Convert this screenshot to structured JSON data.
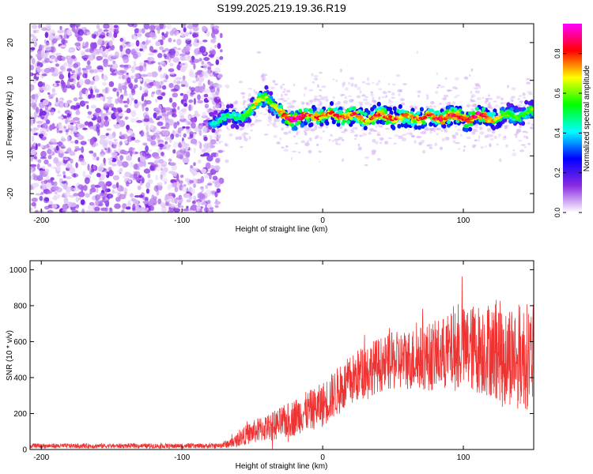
{
  "title": "S199.2025.219.19.36.R19",
  "chart_data": [
    {
      "type": "heatmap",
      "xlabel": "Height of straight line (km)",
      "ylabel": "Frequency (Hz)",
      "xlim": [
        -208,
        150
      ],
      "ylim": [
        -25,
        25
      ],
      "xticks": [
        -200,
        -100,
        0,
        100
      ],
      "xtick_labels": [
        "-200",
        "-100",
        "0",
        "100"
      ],
      "yticks": [
        -20,
        -10,
        0,
        10,
        20
      ],
      "ytick_labels": [
        "-20",
        "-10",
        "0",
        "10",
        "20"
      ],
      "colorbar": {
        "label": "Normalized spectral amplitude",
        "range": [
          0,
          0.95
        ],
        "ticks": [
          0.0,
          0.2,
          0.4,
          0.6,
          0.8
        ],
        "tick_labels": [
          "0.0",
          "0.2",
          "0.4",
          "0.6",
          "0.8"
        ],
        "colormap": [
          "#ffffff",
          "#8a2be2",
          "#0000ff",
          "#00ffff",
          "#00ff00",
          "#ffff00",
          "#ff0000",
          "#ff00ff"
        ]
      },
      "noise_region": {
        "x_range": [
          -208,
          -72
        ],
        "freq_range": [
          -25,
          25
        ]
      },
      "signal_ridge": {
        "x": [
          -80,
          -70,
          -60,
          -50,
          -45,
          -40,
          -35,
          -30,
          -25,
          -20,
          -15,
          -10,
          -5,
          0,
          10,
          20,
          30,
          40,
          50,
          60,
          70,
          80,
          90,
          100,
          110,
          120,
          130,
          140,
          150
        ],
        "frequency": [
          -1,
          0,
          0.5,
          2,
          5,
          6,
          3,
          1,
          0.5,
          0,
          0,
          0.5,
          1,
          0.5,
          1,
          0.5,
          0,
          0.5,
          0.5,
          0,
          0.5,
          0,
          0.5,
          0,
          0.5,
          0,
          0.5,
          1,
          1.5
        ],
        "peak_amplitude": [
          0.4,
          0.5,
          0.5,
          0.6,
          0.7,
          0.6,
          0.6,
          0.8,
          0.9,
          0.95,
          0.9,
          0.8,
          0.8,
          0.7,
          0.8,
          0.8,
          0.75,
          0.8,
          0.8,
          0.75,
          0.8,
          0.8,
          0.85,
          0.8,
          0.9,
          0.75,
          0.6,
          0.55,
          0.6
        ]
      }
    },
    {
      "type": "line",
      "xlabel": "Height of straight line (km)",
      "ylabel": "SNR (10 * v/v)",
      "xlim": [
        -208,
        150
      ],
      "ylim": [
        0,
        1050
      ],
      "xticks": [
        -200,
        -100,
        0,
        100
      ],
      "xtick_labels": [
        "-200",
        "-100",
        "0",
        "100"
      ],
      "yticks": [
        0,
        200,
        400,
        600,
        800,
        1000
      ],
      "ytick_labels": [
        "0",
        "200",
        "400",
        "600",
        "800",
        "1000"
      ],
      "color": "#ee3333",
      "series": [
        {
          "x": [
            -208,
            -180,
            -150,
            -120,
            -90,
            -75,
            -65,
            -55,
            -45,
            -35,
            -25,
            -15,
            -5,
            0,
            10,
            20,
            30,
            40,
            50,
            60,
            70,
            80,
            90,
            100,
            110,
            120,
            130,
            140,
            150
          ],
          "y": [
            20,
            20,
            20,
            20,
            20,
            20,
            35,
            80,
            110,
            130,
            160,
            200,
            230,
            250,
            320,
            380,
            440,
            470,
            490,
            500,
            510,
            520,
            540,
            560,
            560,
            560,
            540,
            520,
            520
          ],
          "spread": [
            15,
            15,
            15,
            15,
            15,
            15,
            30,
            60,
            80,
            90,
            110,
            120,
            130,
            140,
            150,
            160,
            170,
            170,
            180,
            190,
            200,
            220,
            240,
            260,
            280,
            300,
            320,
            330,
            330
          ]
        }
      ]
    }
  ]
}
